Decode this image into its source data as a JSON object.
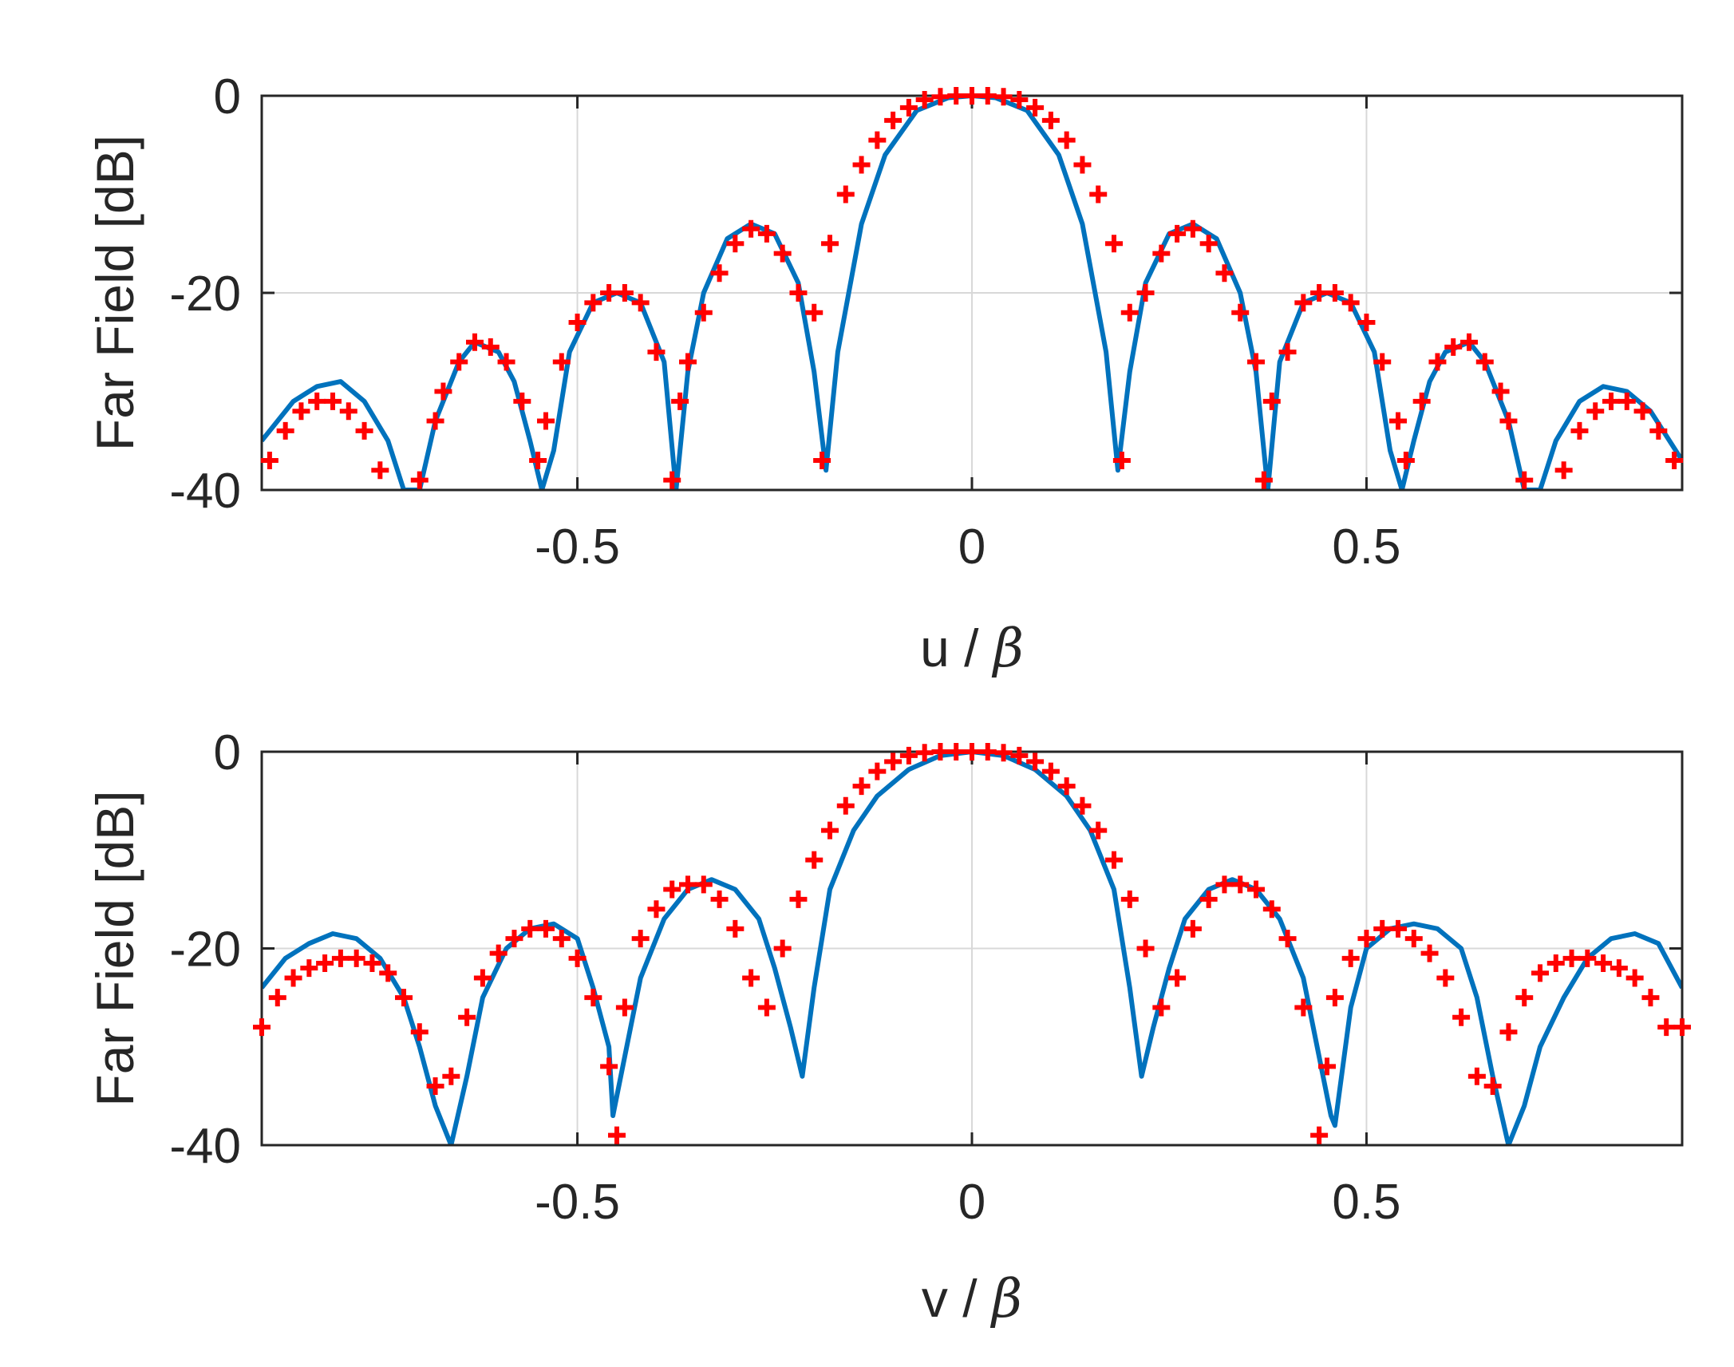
{
  "chart_data": [
    {
      "type": "line",
      "xlabel": "u / β",
      "xlabel_parts": {
        "text": "u / ",
        "symbol": "β"
      },
      "ylabel": "Far Field [dB]",
      "xlim": [
        -0.9,
        0.9
      ],
      "ylim": [
        -40,
        0
      ],
      "xticks": [
        -0.5,
        0,
        0.5
      ],
      "xtick_labels": [
        "-0.5",
        "0",
        "0.5"
      ],
      "yticks": [
        -40,
        -20,
        0
      ],
      "ytick_labels": [
        "-40",
        "-20",
        "0"
      ],
      "grid": true,
      "series": [
        {
          "style": "line",
          "color": "#0072BD",
          "x": [
            -0.9,
            -0.86,
            -0.83,
            -0.8,
            -0.77,
            -0.74,
            -0.72,
            -0.7,
            -0.68,
            -0.65,
            -0.63,
            -0.6,
            -0.58,
            -0.56,
            -0.545,
            -0.53,
            -0.51,
            -0.48,
            -0.45,
            -0.42,
            -0.39,
            -0.375,
            -0.36,
            -0.34,
            -0.31,
            -0.28,
            -0.25,
            -0.22,
            -0.2,
            -0.185,
            -0.17,
            -0.14,
            -0.11,
            -0.07,
            -0.03,
            0.0,
            0.03,
            0.07,
            0.11,
            0.14,
            0.17,
            0.185,
            0.2,
            0.22,
            0.25,
            0.28,
            0.31,
            0.34,
            0.36,
            0.375,
            0.39,
            0.42,
            0.45,
            0.48,
            0.51,
            0.53,
            0.545,
            0.56,
            0.58,
            0.6,
            0.63,
            0.65,
            0.68,
            0.7,
            0.72,
            0.74,
            0.77,
            0.8,
            0.83,
            0.86,
            0.9
          ],
          "y": [
            -35,
            -31,
            -29.5,
            -29,
            -31,
            -35,
            -40,
            -40,
            -33,
            -27,
            -25,
            -26,
            -29,
            -35,
            -40,
            -36,
            -26,
            -21,
            -20,
            -21,
            -27,
            -40,
            -28,
            -20,
            -14.5,
            -13,
            -14,
            -19,
            -28,
            -38,
            -26,
            -13,
            -6,
            -1.5,
            -0.2,
            0,
            -0.2,
            -1.5,
            -6,
            -13,
            -26,
            -38,
            -28,
            -19,
            -14,
            -13,
            -14.5,
            -20,
            -28,
            -40,
            -27,
            -21,
            -20,
            -21,
            -26,
            -36,
            -40,
            -35,
            -29,
            -26,
            -25,
            -27,
            -33,
            -40,
            -40,
            -35,
            -31,
            -29.5,
            -30,
            -32,
            -37
          ]
        },
        {
          "style": "markers",
          "marker": "+",
          "color": "#FF0000",
          "x": [
            -0.89,
            -0.87,
            -0.85,
            -0.83,
            -0.81,
            -0.79,
            -0.77,
            -0.75,
            -0.7,
            -0.68,
            -0.67,
            -0.65,
            -0.63,
            -0.61,
            -0.59,
            -0.57,
            -0.55,
            -0.54,
            -0.52,
            -0.5,
            -0.48,
            -0.46,
            -0.44,
            -0.42,
            -0.4,
            -0.38,
            -0.37,
            -0.36,
            -0.34,
            -0.32,
            -0.3,
            -0.28,
            -0.26,
            -0.24,
            -0.22,
            -0.2,
            -0.19,
            -0.18,
            -0.16,
            -0.14,
            -0.12,
            -0.1,
            -0.08,
            -0.06,
            -0.04,
            -0.02,
            0.0,
            0.02,
            0.04,
            0.06,
            0.08,
            0.1,
            0.12,
            0.14,
            0.16,
            0.18,
            0.19,
            0.2,
            0.22,
            0.24,
            0.26,
            0.28,
            0.3,
            0.32,
            0.34,
            0.36,
            0.37,
            0.38,
            0.4,
            0.42,
            0.44,
            0.46,
            0.48,
            0.5,
            0.52,
            0.54,
            0.55,
            0.57,
            0.59,
            0.61,
            0.63,
            0.65,
            0.67,
            0.68,
            0.7,
            0.75,
            0.77,
            0.79,
            0.81,
            0.83,
            0.85,
            0.87,
            0.89
          ],
          "y": [
            -37,
            -34,
            -32,
            -31,
            -31,
            -32,
            -34,
            -38,
            -39,
            -33,
            -30,
            -27,
            -25,
            -25.5,
            -27,
            -31,
            -37,
            -33,
            -27,
            -23,
            -21,
            -20,
            -20,
            -21,
            -26,
            -39,
            -31,
            -27,
            -22,
            -18,
            -15,
            -13.5,
            -14,
            -16,
            -20,
            -22,
            -37,
            -15,
            -10,
            -7,
            -4.5,
            -2.5,
            -1.2,
            -0.4,
            -0.1,
            0,
            0,
            0,
            -0.1,
            -0.4,
            -1.2,
            -2.5,
            -4.5,
            -7,
            -10,
            -15,
            -37,
            -22,
            -20,
            -16,
            -14,
            -13.5,
            -15,
            -18,
            -22,
            -27,
            -39,
            -31,
            -26,
            -21,
            -20,
            -20,
            -21,
            -23,
            -27,
            -33,
            -37,
            -31,
            -27,
            -25.5,
            -25,
            -27,
            -30,
            -33,
            -39,
            -38,
            -34,
            -32,
            -31,
            -31,
            -32,
            -34,
            -37
          ]
        }
      ]
    },
    {
      "type": "line",
      "xlabel": "v / β",
      "xlabel_parts": {
        "text": "v / ",
        "symbol": "β"
      },
      "ylabel": "Far Field [dB]",
      "xlim": [
        -0.9,
        0.9
      ],
      "ylim": [
        -40,
        0
      ],
      "xticks": [
        -0.5,
        0,
        0.5
      ],
      "xtick_labels": [
        "-0.5",
        "0",
        "0.5"
      ],
      "yticks": [
        -40,
        -20,
        0
      ],
      "ytick_labels": [
        "-40",
        "-20",
        "0"
      ],
      "grid": true,
      "series": [
        {
          "style": "line",
          "color": "#0072BD",
          "x": [
            -0.9,
            -0.87,
            -0.84,
            -0.81,
            -0.78,
            -0.75,
            -0.72,
            -0.7,
            -0.68,
            -0.66,
            -0.64,
            -0.62,
            -0.59,
            -0.56,
            -0.53,
            -0.5,
            -0.48,
            -0.46,
            -0.455,
            -0.44,
            -0.42,
            -0.39,
            -0.36,
            -0.33,
            -0.3,
            -0.27,
            -0.25,
            -0.23,
            -0.215,
            -0.2,
            -0.18,
            -0.15,
            -0.12,
            -0.08,
            -0.04,
            0.0,
            0.04,
            0.08,
            0.12,
            0.15,
            0.18,
            0.2,
            0.215,
            0.23,
            0.25,
            0.27,
            0.3,
            0.33,
            0.36,
            0.39,
            0.42,
            0.44,
            0.455,
            0.46,
            0.48,
            0.5,
            0.53,
            0.56,
            0.59,
            0.62,
            0.64,
            0.66,
            0.68,
            0.7,
            0.72,
            0.75,
            0.78,
            0.81,
            0.84,
            0.87,
            0.9
          ],
          "y": [
            -24,
            -21,
            -19.5,
            -18.5,
            -19,
            -21,
            -25,
            -30,
            -36,
            -40,
            -33,
            -25,
            -20,
            -18,
            -17.5,
            -19,
            -24,
            -30,
            -37,
            -31,
            -23,
            -17,
            -14,
            -13,
            -14,
            -17,
            -22,
            -28,
            -33,
            -24,
            -14,
            -8,
            -4.5,
            -1.8,
            -0.4,
            0,
            -0.4,
            -1.8,
            -4.5,
            -8,
            -14,
            -24,
            -33,
            -28,
            -22,
            -17,
            -14,
            -13,
            -14,
            -17,
            -23,
            -31,
            -37,
            -38,
            -26,
            -20,
            -18,
            -17.5,
            -18,
            -20,
            -25,
            -33,
            -40,
            -36,
            -30,
            -25,
            -21,
            -19,
            -18.5,
            -19.5,
            -24
          ]
        },
        {
          "style": "markers",
          "marker": "+",
          "color": "#FF0000",
          "x": [
            -0.9,
            -0.88,
            -0.86,
            -0.84,
            -0.82,
            -0.8,
            -0.78,
            -0.76,
            -0.74,
            -0.72,
            -0.7,
            -0.68,
            -0.66,
            -0.64,
            -0.62,
            -0.6,
            -0.58,
            -0.56,
            -0.54,
            -0.52,
            -0.5,
            -0.48,
            -0.46,
            -0.45,
            -0.44,
            -0.42,
            -0.4,
            -0.38,
            -0.36,
            -0.34,
            -0.32,
            -0.3,
            -0.28,
            -0.26,
            -0.24,
            -0.22,
            -0.2,
            -0.18,
            -0.16,
            -0.14,
            -0.12,
            -0.1,
            -0.08,
            -0.06,
            -0.04,
            -0.02,
            0.0,
            0.02,
            0.04,
            0.06,
            0.08,
            0.1,
            0.12,
            0.14,
            0.16,
            0.18,
            0.2,
            0.22,
            0.24,
            0.26,
            0.28,
            0.3,
            0.32,
            0.34,
            0.36,
            0.38,
            0.4,
            0.42,
            0.44,
            0.45,
            0.46,
            0.48,
            0.5,
            0.52,
            0.54,
            0.56,
            0.58,
            0.6,
            0.62,
            0.64,
            0.66,
            0.68,
            0.7,
            0.72,
            0.74,
            0.76,
            0.78,
            0.8,
            0.82,
            0.84,
            0.86,
            0.88,
            0.9
          ],
          "y": [
            -28,
            -25,
            -23,
            -22,
            -21.5,
            -21,
            -21,
            -21.5,
            -22.5,
            -25,
            -28.5,
            -34,
            -33,
            -27,
            -23,
            -20.5,
            -19,
            -18,
            -18,
            -19,
            -21,
            -25,
            -32,
            -39,
            -26,
            -19,
            -16,
            -14,
            -13.5,
            -13.5,
            -15,
            -18,
            -23,
            -26,
            -20,
            -15,
            -11,
            -8,
            -5.5,
            -3.5,
            -2,
            -1,
            -0.4,
            -0.1,
            0,
            0,
            0,
            0,
            -0.1,
            -0.4,
            -1,
            -2,
            -3.5,
            -5.5,
            -8,
            -11,
            -15,
            -20,
            -26,
            -23,
            -18,
            -15,
            -13.5,
            -13.5,
            -14,
            -16,
            -19,
            -26,
            -39,
            -32,
            -25,
            -21,
            -19,
            -18,
            -18,
            -19,
            -20.5,
            -23,
            -27,
            -33,
            -34,
            -28.5,
            -25,
            -22.5,
            -21.5,
            -21,
            -21,
            -21.5,
            -22,
            -23,
            -25,
            -28,
            -28
          ]
        }
      ]
    }
  ]
}
